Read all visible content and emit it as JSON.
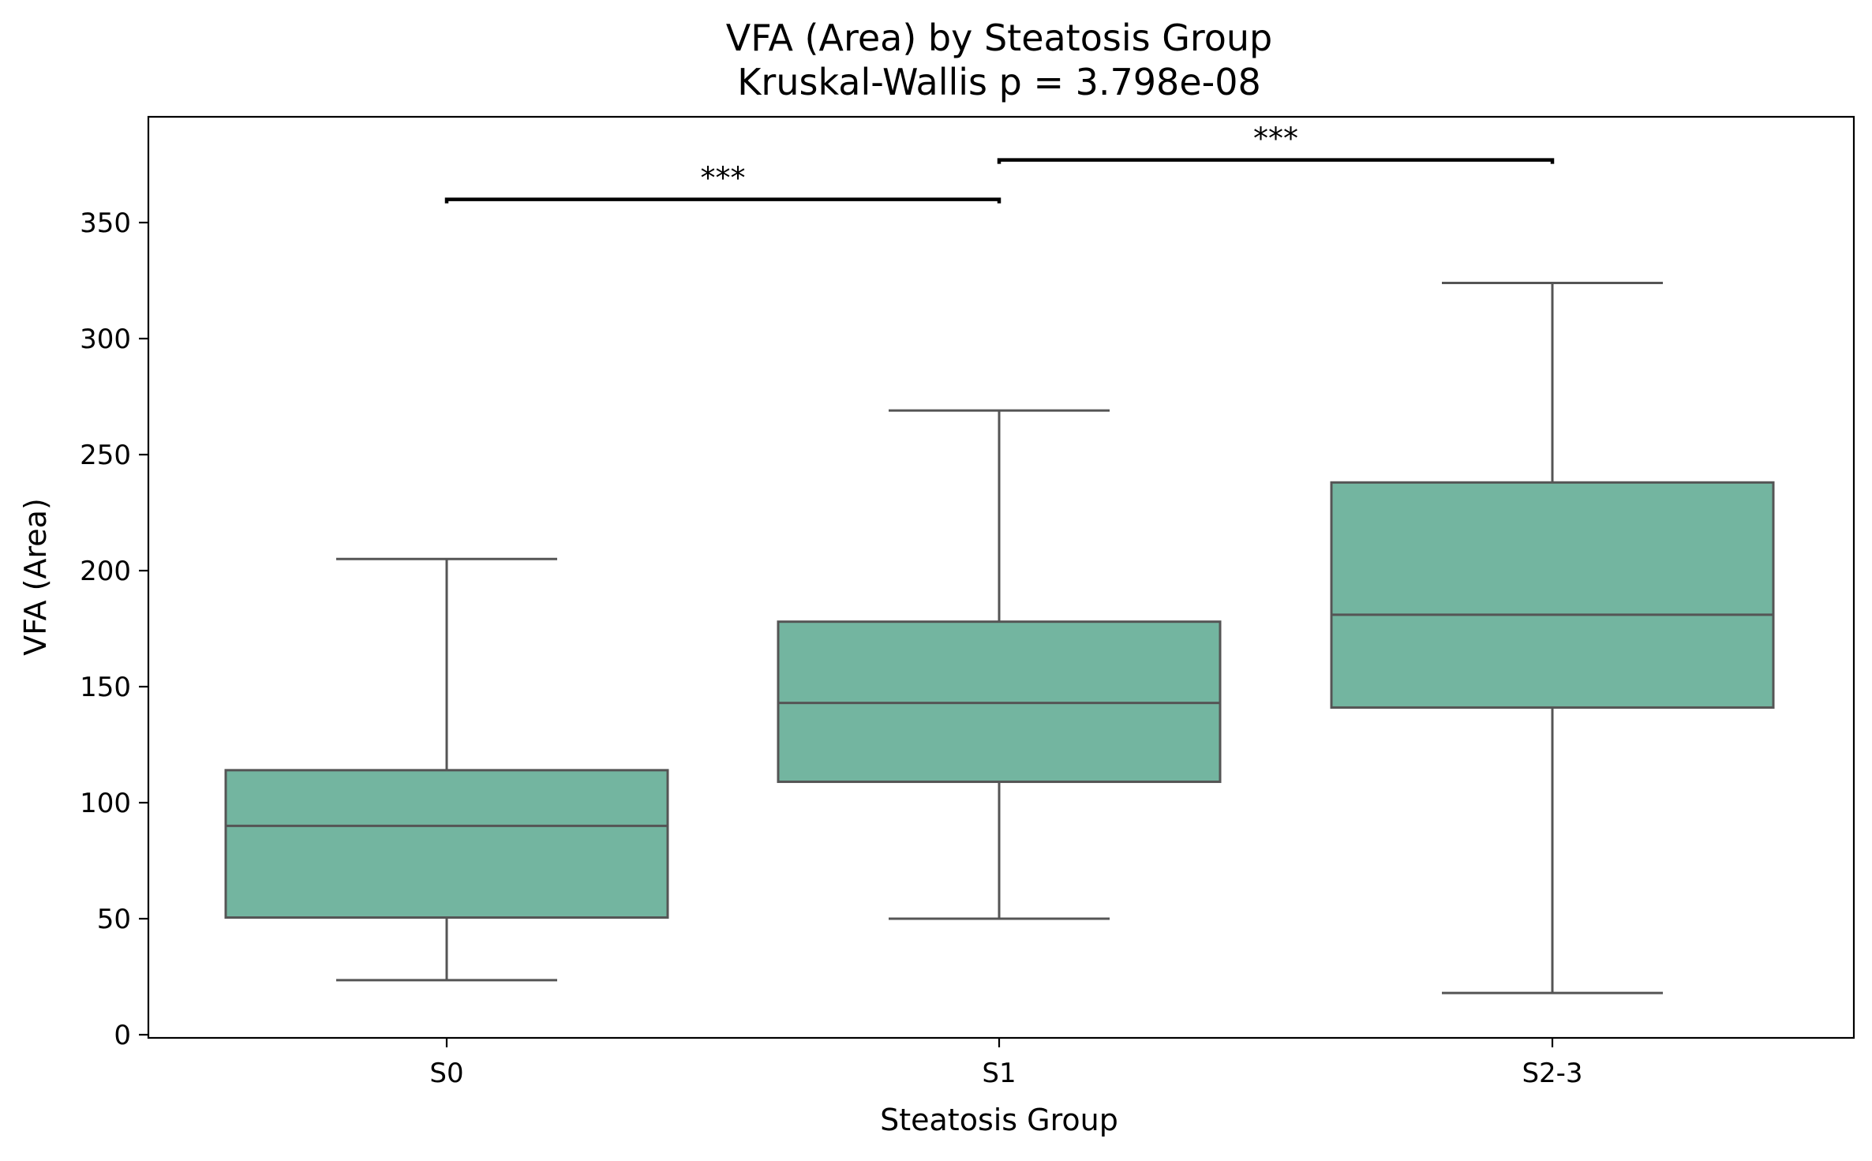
{
  "chart_data": {
    "type": "box",
    "title": "VFA (Area) by Steatosis Group",
    "subtitle": "Kruskal-Wallis p = 3.798e-08",
    "xlabel": "Steatosis Group",
    "ylabel": "VFA (Area)",
    "ylim": [
      0,
      395
    ],
    "yticks": [
      0,
      50,
      100,
      150,
      200,
      250,
      300,
      350
    ],
    "grid": false,
    "box_color": "#73b5a0",
    "line_color": "#555555",
    "categories": [
      "S0",
      "S1",
      "S2-3"
    ],
    "boxes": [
      {
        "category": "S0",
        "whisker_low": 23.5,
        "q1": 50.5,
        "median": 90,
        "q3": 114,
        "whisker_high": 205
      },
      {
        "category": "S1",
        "whisker_low": 50,
        "q1": 109,
        "median": 143,
        "q3": 178,
        "whisker_high": 269
      },
      {
        "category": "S2-3",
        "whisker_low": 18,
        "q1": 141,
        "median": 181,
        "q3": 238,
        "whisker_high": 324
      }
    ],
    "significance": [
      {
        "from": "S0",
        "to": "S1",
        "y": 360,
        "label": "***"
      },
      {
        "from": "S1",
        "to": "S2-3",
        "y": 377,
        "label": "***"
      }
    ]
  }
}
